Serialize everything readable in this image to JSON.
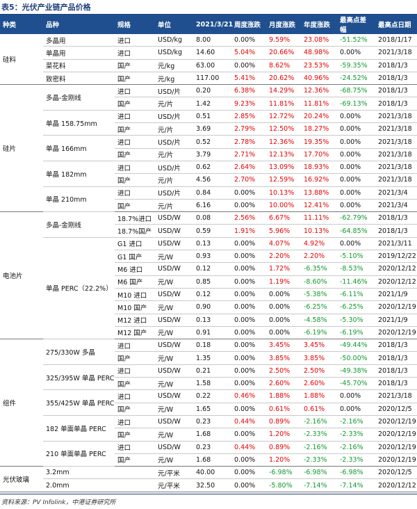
{
  "title": "表5：光伏产业链产品价格",
  "header": [
    "种类",
    "品种",
    "规格",
    "单位",
    "2021/3/21",
    "周度涨跌",
    "月度涨跌",
    "年度涨跌",
    "最高点差幅",
    "最高点日期"
  ],
  "groups": [
    {
      "name": "硅料",
      "varieties": [
        {
          "name": "多晶用",
          "rows": [
            [
              "进口",
              "USD/kg",
              "8.00",
              "0.00%",
              "9.59%",
              "23.08%",
              "-51.52%",
              "2018/1/17"
            ]
          ]
        },
        {
          "name": "单晶用",
          "rows": [
            [
              "进口",
              "USD/kg",
              "14.60",
              "5.04%",
              "20.66%",
              "48.98%",
              "0.00%",
              "2021/3/18"
            ]
          ]
        },
        {
          "name": "菜花料",
          "rows": [
            [
              "国产",
              "元/kg",
              "63.00",
              "0.00%",
              "8.62%",
              "23.53%",
              "-59.35%",
              "2018/1/3"
            ]
          ]
        },
        {
          "name": "致密料",
          "rows": [
            [
              "国产",
              "元/kg",
              "117.00",
              "5.41%",
              "20.62%",
              "40.96%",
              "-24.52%",
              "2018/1/3"
            ]
          ]
        }
      ]
    },
    {
      "name": "硅片",
      "varieties": [
        {
          "name": "多晶-金刚线",
          "rows": [
            [
              "进口",
              "USD/片",
              "0.20",
              "6.38%",
              "14.29%",
              "12.36%",
              "-68.75%",
              "2018/1/3"
            ],
            [
              "国产",
              "元/片",
              "1.42",
              "9.23%",
              "11.81%",
              "11.81%",
              "-69.13%",
              "2018/1/3"
            ]
          ]
        },
        {
          "name": "单晶 158.75mm",
          "rows": [
            [
              "进口",
              "USD/片",
              "0.51",
              "2.85%",
              "12.72%",
              "20.24%",
              "0.00%",
              "2021/3/18"
            ],
            [
              "国产",
              "元/片",
              "3.69",
              "2.79%",
              "12.50%",
              "18.27%",
              "0.00%",
              "2021/3/18"
            ]
          ]
        },
        {
          "name": "单晶 166mm",
          "rows": [
            [
              "进口",
              "USD/片",
              "0.52",
              "2.78%",
              "12.36%",
              "19.35%",
              "0.00%",
              "2021/3/18"
            ],
            [
              "国产",
              "元/片",
              "3.79",
              "2.71%",
              "12.13%",
              "17.70%",
              "0.00%",
              "2021/3/18"
            ]
          ]
        },
        {
          "name": "单晶 182mm",
          "rows": [
            [
              "进口",
              "USD/片",
              "0.62",
              "2.64%",
              "13.09%",
              "18.93%",
              "0.00%",
              "2021/3/18"
            ],
            [
              "国产",
              "元/片",
              "4.56",
              "2.70%",
              "12.59%",
              "16.92%",
              "0.00%",
              "2021/3/18"
            ]
          ]
        },
        {
          "name": "单晶 210mm",
          "rows": [
            [
              "进口",
              "USD/片",
              "0.84",
              "0.00%",
              "10.13%",
              "13.88%",
              "0.00%",
              "2021/3/4"
            ],
            [
              "国产",
              "元/片",
              "6.16",
              "0.00%",
              "10.00%",
              "12.41%",
              "0.00%",
              "2021/3/4"
            ]
          ]
        }
      ]
    },
    {
      "name": "电池片",
      "varieties": [
        {
          "name": "多晶-金刚线",
          "rows": [
            [
              "18.7%进口",
              "USD/W",
              "0.08",
              "2.56%",
              "6.67%",
              "11.11%",
              "-62.79%",
              "2018/1/3"
            ],
            [
              "18.7%国产",
              "USD/W",
              "0.59",
              "1.91%",
              "5.96%",
              "10.13%",
              "-64.85%",
              "2018/1/3"
            ]
          ]
        },
        {
          "name": "单晶 PERC（22.2%）",
          "rows": [
            [
              "G1 进口",
              "USD/W",
              "0.13",
              "0.00%",
              "4.07%",
              "4.92%",
              "0.00%",
              "2021/3/11"
            ],
            [
              "G1 国产",
              "元/W",
              "0.93",
              "0.00%",
              "2.20%",
              "2.20%",
              "-5.10%",
              "2019/12/22"
            ],
            [
              "M6 进口",
              "USD/W",
              "0.12",
              "0.00%",
              "1.72%",
              "-6.35%",
              "-8.53%",
              "2020/12/12"
            ],
            [
              "M6 国产",
              "元/W",
              "0.85",
              "0.00%",
              "1.19%",
              "-8.60%",
              "-11.46%",
              "2020/12/12"
            ],
            [
              "M10 进口",
              "USD/W",
              "0.12",
              "0.00%",
              "0.00%",
              "-5.38%",
              "-6.11%",
              "2021/1/9"
            ],
            [
              "M10 国产",
              "元/W",
              "0.90",
              "0.00%",
              "0.00%",
              "-6.25%",
              "-6.25%",
              "2020/12/19"
            ],
            [
              "M12 进口",
              "USD/W",
              "0.13",
              "0.00%",
              "0.00%",
              "-4.58%",
              "-5.30%",
              "2021/1/9"
            ],
            [
              "M12 国产",
              "元/W",
              "0.91",
              "0.00%",
              "0.00%",
              "-6.19%",
              "-6.19%",
              "2020/12/19"
            ]
          ]
        }
      ]
    },
    {
      "name": "组件",
      "varieties": [
        {
          "name": "275/330W 多晶",
          "rows": [
            [
              "进口",
              "USD/W",
              "0.18",
              "0.00%",
              "3.45%",
              "3.45%",
              "-49.44%",
              "2018/1/3"
            ],
            [
              "国产",
              "元/W",
              "1.35",
              "0.00%",
              "3.85%",
              "3.85%",
              "-50.00%",
              "2018/1/3"
            ]
          ]
        },
        {
          "name": "325/395W 单晶 PERC",
          "rows": [
            [
              "进口",
              "USD/W",
              "0.21",
              "0.00%",
              "2.50%",
              "2.50%",
              "-49.38%",
              "2018/1/3"
            ],
            [
              "国产",
              "元/W",
              "1.58",
              "0.00%",
              "2.60%",
              "2.60%",
              "-45.70%",
              "2018/1/3"
            ]
          ]
        },
        {
          "name": "355/425W 单晶 PERC",
          "rows": [
            [
              "进口",
              "USD/W",
              "0.22",
              "0.46%",
              "1.88%",
              "1.88%",
              "0.00%",
              "2021/3/18"
            ],
            [
              "国产",
              "元/W",
              "1.65",
              "0.00%",
              "0.61%",
              "0.61%",
              "0.00%",
              "2020/12/5"
            ]
          ]
        },
        {
          "name": "182 单面单晶 PERC",
          "rows": [
            [
              "进口",
              "USD/W",
              "0.23",
              "0.44%",
              "0.89%",
              "-2.16%",
              "-2.16%",
              "2020/12/19"
            ],
            [
              "国产",
              "元/W",
              "1.68",
              "0.00%",
              "1.20%",
              "-2.33%",
              "-2.33%",
              "2020/12/19"
            ]
          ]
        },
        {
          "name": "210 单面单晶 PERC",
          "rows": [
            [
              "进口",
              "USD/W",
              "0.23",
              "0.44%",
              "0.89%",
              "-2.16%",
              "-2.16%",
              "2020/12/19"
            ],
            [
              "国产",
              "元/W",
              "1.68",
              "0.00%",
              "1.20%",
              "-2.33%",
              "-2.33%",
              "2020/12/19"
            ]
          ]
        }
      ]
    },
    {
      "name": "光伏玻璃",
      "varieties": [
        {
          "name": "3.2mm",
          "rows": [
            [
              null,
              "元/平米",
              "40.00",
              "0.00%",
              "-6.98%",
              "-6.98%",
              "-6.98%",
              "2020/12/5"
            ]
          ]
        },
        {
          "name": "2.0mm",
          "rows": [
            [
              null,
              "元/平米",
              "32.50",
              "0.00%",
              "-5.80%",
              "-7.14%",
              "-7.14%",
              "2020/12/12"
            ]
          ]
        }
      ]
    }
  ],
  "source": "资料来源：PV Infolink，中港证券研究所"
}
